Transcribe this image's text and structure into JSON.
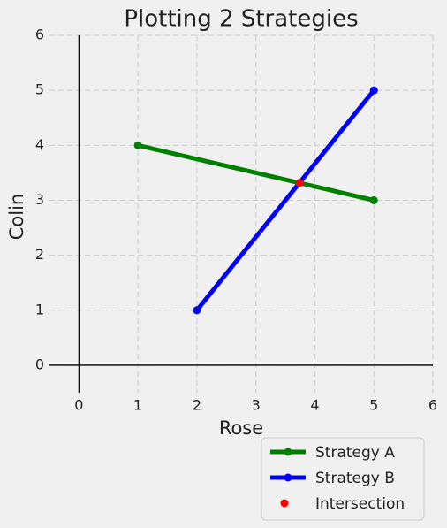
{
  "chart_data": {
    "type": "line",
    "title": "Plotting 2 Strategies",
    "x_label": "Rose",
    "y_label": "Colin",
    "xlim": [
      -0.5,
      6
    ],
    "ylim": [
      -0.5,
      6
    ],
    "xticks": [
      0,
      1,
      2,
      3,
      4,
      5,
      6
    ],
    "yticks": [
      0,
      1,
      2,
      3,
      4,
      5,
      6
    ],
    "grid": true,
    "legend": "lower right",
    "series": [
      {
        "name": "Strategy A",
        "color": "#008000",
        "type": "line",
        "x": [
          1,
          5
        ],
        "values": [
          4,
          3
        ]
      },
      {
        "name": "Strategy B",
        "color": "#0000ff",
        "type": "line",
        "x": [
          2,
          5
        ],
        "values": [
          1,
          5
        ]
      },
      {
        "name": "Intersection",
        "color": "#ff0000",
        "type": "scatter",
        "x": [
          3.7368
        ],
        "values": [
          3.3158
        ]
      }
    ]
  }
}
